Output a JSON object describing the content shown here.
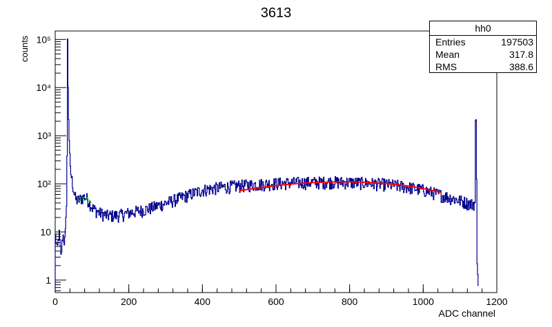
{
  "title": "3613",
  "ylabel": "counts",
  "xlabel": "ADC channel",
  "stats_box": {
    "name": "hh0",
    "rows": [
      {
        "label": "Entries",
        "value": "197503"
      },
      {
        "label": "Mean",
        "value": "317.8"
      },
      {
        "label": "RMS",
        "value": "388.6"
      }
    ]
  },
  "colors": {
    "histogram": "#00008b",
    "fit_main": "#ff0000",
    "fit_low": "#00cc00",
    "axis": "#000000"
  },
  "chart_data": {
    "type": "line",
    "xlim": [
      0,
      1200
    ],
    "ylim": [
      0.55,
      150000
    ],
    "yscale": "log",
    "xticks": [
      0,
      200,
      400,
      600,
      800,
      1000,
      1200
    ],
    "yticks": [
      {
        "value": 1,
        "label": "1"
      },
      {
        "value": 10,
        "label": "10"
      },
      {
        "value": 100,
        "label": "10²"
      },
      {
        "value": 1000,
        "label": "10³"
      },
      {
        "value": 10000,
        "label": "10⁴"
      },
      {
        "value": 100000,
        "label": "10⁵"
      }
    ],
    "grid": false,
    "histogram": {
      "x": [
        0,
        5,
        10,
        15,
        20,
        25,
        28,
        30,
        32,
        33,
        34,
        35,
        36,
        38,
        40,
        45,
        50,
        55,
        60,
        65,
        70,
        75,
        80,
        85,
        90,
        95,
        100,
        110,
        120,
        140,
        160,
        180,
        200,
        250,
        300,
        350,
        400,
        450,
        500,
        550,
        600,
        650,
        700,
        750,
        800,
        850,
        900,
        950,
        1000,
        1050,
        1100,
        1130,
        1140,
        1142,
        1144,
        1146,
        1148,
        1150
      ],
      "y": [
        8,
        4,
        10,
        3,
        9,
        6,
        12,
        45,
        800,
        90000,
        15000,
        8000,
        2500,
        600,
        200,
        120,
        70,
        48,
        45,
        47,
        50,
        52,
        54,
        50,
        45,
        38,
        32,
        28,
        25,
        22,
        22,
        23,
        25,
        30,
        40,
        55,
        75,
        85,
        92,
        98,
        103,
        106,
        108,
        110,
        108,
        104,
        98,
        88,
        75,
        58,
        45,
        38,
        40,
        6000,
        600,
        3,
        1,
        0.6
      ]
    },
    "fits": [
      {
        "x": [
          65,
          70,
          75,
          80,
          85,
          90,
          95,
          100
        ],
        "y": [
          44,
          48,
          51,
          52,
          51,
          48,
          43,
          38
        ]
      },
      {
        "x": [
          500,
          550,
          600,
          650,
          700,
          750,
          800,
          850,
          900,
          950,
          1000,
          1050
        ],
        "y": [
          72,
          82,
          92,
          100,
          106,
          109,
          110,
          107,
          101,
          92,
          80,
          66
        ]
      }
    ]
  }
}
